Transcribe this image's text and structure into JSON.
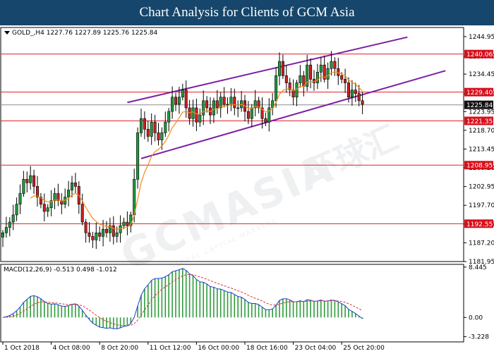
{
  "header": {
    "title": "Chart Analysis for Clients of GCM Asia"
  },
  "colors": {
    "banner_bg": "#16466b",
    "bull": "#1f9a3c",
    "bear": "#c8211f",
    "candle_outline": "#000000",
    "ma": "#f28c1b",
    "channel": "#7e1fa3",
    "hline": "#e0202a",
    "tag_bg": "#d7101c",
    "current_price_line": "#8a8a8a",
    "macd_line": "#1c3fd6",
    "signal_line": "#e23030",
    "hist": "#2f9c3d"
  },
  "watermark": {
    "brand": "GCMASIA",
    "chinese": "环球汇",
    "small": "GLOBAL CAPITAL MARKETS"
  },
  "chart_data": [
    {
      "type": "candlestick",
      "symbol_info": "GOLD_,H4  1227.76 1227.89 1225.76 1225.84",
      "ylim": [
        1181.95,
        1247.5
      ],
      "y_ticks": [
        "1244.95",
        "1239.40",
        "1234.45",
        "1228.90",
        "1223.95",
        "1218.70",
        "1213.45",
        "1208.20",
        "1202.95",
        "1197.70",
        "1192.45",
        "1187.20",
        "1181.95"
      ],
      "x_ticks": [
        "1 Oct 2018",
        "4 Oct 08:00",
        "8 Oct 20:00",
        "11 Oct 12:00",
        "16 Oct 00:00",
        "18 Oct 16:00",
        "23 Oct 04:00",
        "25 Oct 20:00"
      ],
      "x_tick_index": [
        0,
        14,
        28,
        42,
        56,
        70,
        84,
        98
      ],
      "levels": [
        {
          "value": 1240.06,
          "label": "1240.06"
        },
        {
          "value": 1229.4,
          "label": "1229.40"
        },
        {
          "value": 1221.35,
          "label": "1221.35"
        },
        {
          "value": 1208.95,
          "label": "1208.95"
        },
        {
          "value": 1192.55,
          "label": "1192.55"
        }
      ],
      "current_price": {
        "value": 1225.84,
        "label": "1225.84"
      },
      "channel": {
        "upper": [
          [
            36,
            1226.5
          ],
          [
            117,
            1244.8
          ]
        ],
        "lower": [
          [
            40,
            1210.8
          ],
          [
            128,
            1235.4
          ]
        ]
      },
      "close": [
        1190,
        1191.5,
        1193,
        1195,
        1198,
        1201,
        1205,
        1204,
        1206,
        1203,
        1200,
        1198,
        1196,
        1197,
        1199,
        1201,
        1199,
        1198,
        1200,
        1202,
        1204,
        1203,
        1198,
        1193,
        1190,
        1189,
        1188,
        1190,
        1189,
        1191,
        1190,
        1192,
        1189,
        1190,
        1192,
        1193,
        1192,
        1195,
        1205,
        1218,
        1222,
        1219,
        1217,
        1221,
        1218,
        1216,
        1218,
        1221,
        1224,
        1228,
        1226,
        1228,
        1230,
        1225,
        1222,
        1225,
        1221,
        1223,
        1227,
        1225,
        1223,
        1227,
        1225,
        1228,
        1226,
        1226,
        1228,
        1225,
        1225,
        1227,
        1224,
        1222,
        1225,
        1227,
        1225,
        1222,
        1221,
        1225,
        1227,
        1234,
        1238,
        1234,
        1232,
        1230,
        1228,
        1232,
        1234,
        1231,
        1237,
        1233,
        1232,
        1235,
        1237,
        1233,
        1236,
        1238,
        1236,
        1234,
        1233,
        1232,
        1228,
        1230,
        1229,
        1227,
        1226
      ],
      "ma_start": 8
    },
    {
      "type": "line",
      "indicator_label": "MACD(12,26,9) -0.513 0.498 -1.012",
      "ylim": [
        -4.1,
        8.9
      ],
      "y_ticks": [
        "8.445",
        "0.00",
        "-3.228"
      ],
      "series": [
        {
          "role": "macd"
        },
        {
          "role": "signal"
        },
        {
          "role": "histogram"
        }
      ]
    }
  ]
}
